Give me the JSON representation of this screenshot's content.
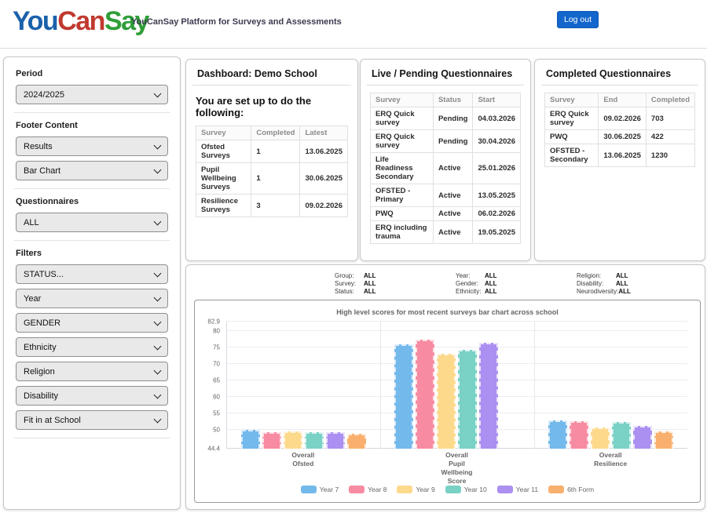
{
  "header": {
    "logo": {
      "you": "You",
      "can": "Can",
      "say": "Say"
    },
    "tagline": "YouCanSay Platform for Surveys and Assessments",
    "logout_label": "Log out"
  },
  "colors": {
    "logout_bg": "#1266cc",
    "logo_you": "#1b61ab",
    "logo_can": "#c0392f",
    "logo_say": "#2f9e38"
  },
  "sidebar": {
    "period": {
      "label": "Period",
      "value": "2024/2025"
    },
    "footer_content": {
      "label": "Footer Content",
      "values": [
        "Results",
        "Bar Chart"
      ]
    },
    "questionnaires": {
      "label": "Questionnaires",
      "value": "ALL"
    },
    "filters": {
      "label": "Filters",
      "values": [
        "STATUS...",
        "Year",
        "GENDER",
        "Ethnicity",
        "Religion",
        "Disability",
        "Fit in at School"
      ]
    }
  },
  "dashboard": {
    "title": "Dashboard: Demo School",
    "subtitle": "You are set up to do the following:",
    "table": {
      "headers": [
        "Survey",
        "Completed",
        "Latest"
      ],
      "rows": [
        [
          "Ofsted Surveys",
          "1",
          "13.06.2025"
        ],
        [
          "Pupil Wellbeing Surveys",
          "1",
          "30.06.2025"
        ],
        [
          "Resilience Surveys",
          "3",
          "09.02.2026"
        ]
      ]
    }
  },
  "live_pending": {
    "title": "Live / Pending Questionnaires",
    "table": {
      "headers": [
        "Survey",
        "Status",
        "Start"
      ],
      "rows": [
        [
          "ERQ Quick survey",
          "Pending",
          "04.03.2026"
        ],
        [
          "ERQ Quick survey",
          "Pending",
          "30.04.2026"
        ],
        [
          "Life Readiness Secondary",
          "Active",
          "25.01.2026"
        ],
        [
          "OFSTED - Primary",
          "Active",
          "13.05.2025"
        ],
        [
          "PWQ",
          "Active",
          "06.02.2026"
        ],
        [
          "ERQ including trauma",
          "Active",
          "19.05.2025"
        ]
      ]
    }
  },
  "completed": {
    "title": "Completed Questionnaires",
    "table": {
      "headers": [
        "Survey",
        "End",
        "Completed"
      ],
      "rows": [
        [
          "ERQ Quick survey",
          "09.02.2026",
          "703"
        ],
        [
          "PWQ",
          "30.06.2025",
          "422"
        ],
        [
          "OFSTED - Secondary",
          "13.06.2025",
          "1230"
        ]
      ]
    }
  },
  "filter_summary": {
    "columns": [
      {
        "rows": [
          {
            "label": "Group:",
            "value": "ALL"
          },
          {
            "label": "Survey:",
            "value": "ALL"
          },
          {
            "label": "Status:",
            "value": "ALL"
          }
        ]
      },
      {
        "rows": [
          {
            "label": "Year:",
            "value": "ALL"
          },
          {
            "label": "Gender:",
            "value": "ALL"
          },
          {
            "label": "Ethnicity:",
            "value": "ALL"
          }
        ]
      },
      {
        "rows": [
          {
            "label": "Religion:",
            "value": "ALL"
          },
          {
            "label": "Disability:",
            "value": "ALL"
          },
          {
            "label": "Neurodiversity:",
            "value": "ALL"
          }
        ]
      }
    ]
  },
  "chart_data": {
    "type": "bar",
    "title": "High level scores for most recent surveys bar chart across school",
    "categories": [
      "Overall\nOfsted",
      "Overall\nPupil\nWellbeing\nScore",
      "Overall\nResilience"
    ],
    "series": [
      {
        "name": "Year 7",
        "color": "#74b9ec",
        "values": [
          50.2,
          75.9,
          53.0
        ]
      },
      {
        "name": "Year 8",
        "color": "#f78ba2",
        "values": [
          49.4,
          77.5,
          52.7
        ]
      },
      {
        "name": "Year 9",
        "color": "#fcd98b",
        "values": [
          49.7,
          73.2,
          50.9
        ]
      },
      {
        "name": "Year 10",
        "color": "#79d2c5",
        "values": [
          49.4,
          74.3,
          52.4
        ]
      },
      {
        "name": "Year 11",
        "color": "#ab90f1",
        "values": [
          49.4,
          76.4,
          51.3
        ]
      },
      {
        "name": "6th Form",
        "color": "#f9b06e",
        "values": [
          49.0,
          null,
          49.6
        ]
      }
    ],
    "ylim": [
      44.4,
      82.9
    ],
    "yticks": [
      44.4,
      50,
      55,
      60,
      65,
      70,
      75,
      80,
      82.9
    ],
    "grid": true,
    "legend_position": "bottom"
  }
}
